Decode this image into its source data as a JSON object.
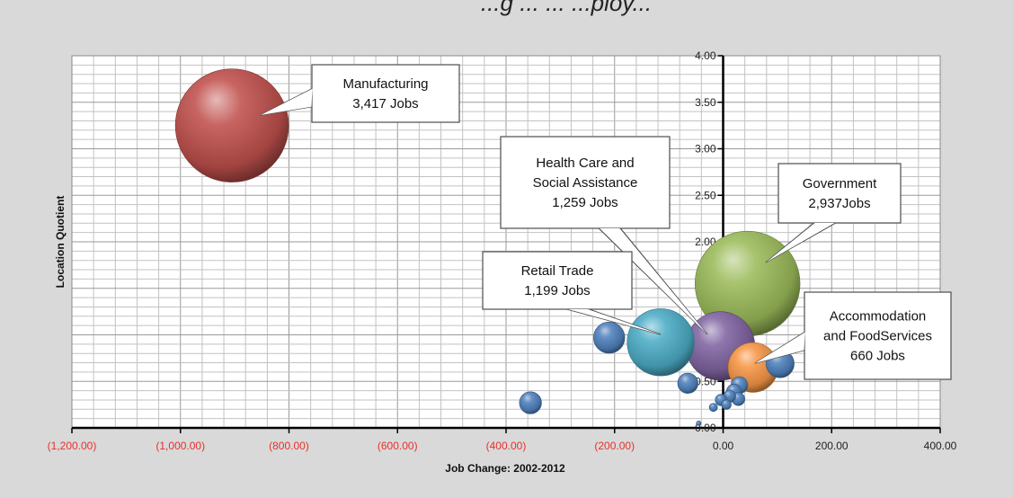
{
  "chart_data": {
    "type": "scatter",
    "title": "...g ... ... ...ploy...",
    "xlabel": "Job Change: 2002-2012",
    "ylabel": "Location Quotient",
    "xlim": [
      -1200,
      400
    ],
    "ylim": [
      0,
      4
    ],
    "x_ticks": [
      "(1,200.00)",
      "(1,000.00)",
      "(800.00)",
      "(600.00)",
      "(400.00)",
      "(200.00)",
      "0.00",
      "200.00",
      "400.00"
    ],
    "y_ticks": [
      "0.00",
      "0.50",
      "1.00",
      "1.50",
      "2.00",
      "2.50",
      "3.00",
      "3.50",
      "4.00"
    ],
    "grid": true,
    "series": [
      {
        "label": "Manufacturing",
        "x": -905,
        "y": 3.25,
        "jobs": 3417,
        "color": "#c0504d"
      },
      {
        "label": "Government",
        "x": 45,
        "y": 1.55,
        "jobs": 2937,
        "color": "#9bbb59"
      },
      {
        "label": "Health Care and Social Assistance",
        "x": -5,
        "y": 0.88,
        "jobs": 1259,
        "color": "#8064a2"
      },
      {
        "label": "Retail Trade",
        "x": -115,
        "y": 0.92,
        "jobs": 1199,
        "color": "#4bacc6"
      },
      {
        "label": "Accommodation and FoodServices",
        "x": 55,
        "y": 0.65,
        "jobs": 660,
        "color": "#f79646"
      },
      {
        "label": "",
        "x": -210,
        "y": 0.97,
        "jobs": 260,
        "color": "#4f81bd"
      },
      {
        "label": "",
        "x": 105,
        "y": 0.69,
        "jobs": 210,
        "color": "#4f81bd"
      },
      {
        "label": "",
        "x": -355,
        "y": 0.27,
        "jobs": 130,
        "color": "#4f81bd"
      },
      {
        "label": "",
        "x": -65,
        "y": 0.48,
        "jobs": 110,
        "color": "#4f81bd"
      },
      {
        "label": "",
        "x": 30,
        "y": 0.46,
        "jobs": 75,
        "color": "#4f81bd"
      },
      {
        "label": "",
        "x": 20,
        "y": 0.39,
        "jobs": 60,
        "color": "#4f81bd"
      },
      {
        "label": "",
        "x": 12,
        "y": 0.34,
        "jobs": 40,
        "color": "#4f81bd"
      },
      {
        "label": "",
        "x": 28,
        "y": 0.31,
        "jobs": 45,
        "color": "#4f81bd"
      },
      {
        "label": "",
        "x": -4,
        "y": 0.3,
        "jobs": 35,
        "color": "#4f81bd"
      },
      {
        "label": "",
        "x": 6,
        "y": 0.25,
        "jobs": 25,
        "color": "#4f81bd"
      },
      {
        "label": "",
        "x": -18,
        "y": 0.22,
        "jobs": 18,
        "color": "#4f81bd"
      },
      {
        "label": "",
        "x": -45,
        "y": 0.05,
        "jobs": 6,
        "color": "#4f81bd"
      }
    ],
    "callouts": [
      {
        "target": "Manufacturing",
        "lines": [
          "Manufacturing",
          "3,417 Jobs"
        ]
      },
      {
        "target": "Health Care and Social Assistance",
        "lines": [
          "Health Care and",
          "Social Assistance",
          "1,259 Jobs"
        ]
      },
      {
        "target": "Government",
        "lines": [
          "Government",
          "2,937Jobs"
        ]
      },
      {
        "target": "Retail Trade",
        "lines": [
          "Retail Trade",
          "1,199 Jobs"
        ]
      },
      {
        "target": "Accommodation and FoodServices",
        "lines": [
          "Accommodation",
          "and FoodServices",
          "660 Jobs"
        ]
      }
    ]
  }
}
